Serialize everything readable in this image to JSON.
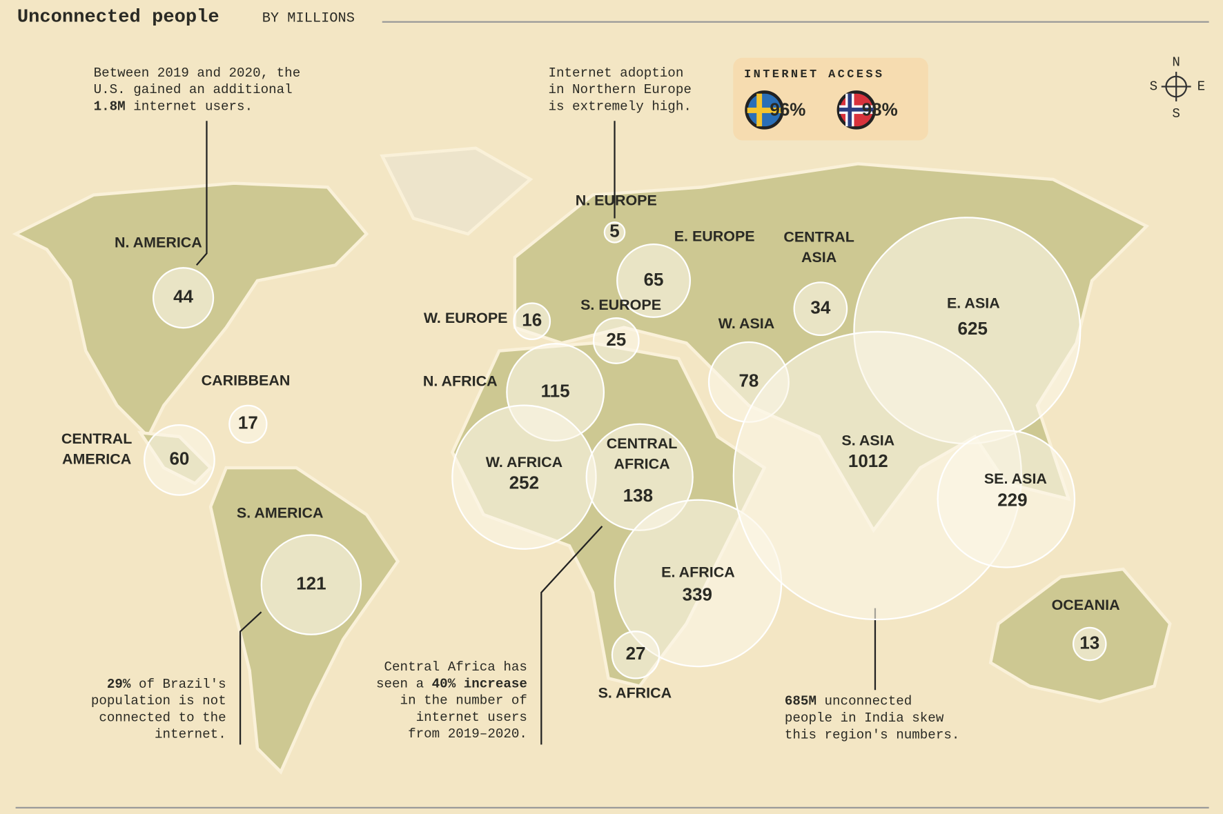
{
  "title": "Unconnected people",
  "subtitle": "BY MILLIONS",
  "regions": [
    {
      "name": [
        "N. AMERICA"
      ],
      "value": 44
    },
    {
      "name": [
        "CARIBBEAN"
      ],
      "value": 17
    },
    {
      "name": [
        "CENTRAL",
        "AMERICA"
      ],
      "value": 60
    },
    {
      "name": [
        "S. AMERICA"
      ],
      "value": 121
    },
    {
      "name": [
        "W. EUROPE"
      ],
      "value": 16
    },
    {
      "name": [
        "N. EUROPE"
      ],
      "value": 5
    },
    {
      "name": [
        "E. EUROPE"
      ],
      "value": 65
    },
    {
      "name": [
        "S. EUROPE"
      ],
      "value": 25
    },
    {
      "name": [
        "N. AFRICA"
      ],
      "value": 115
    },
    {
      "name": [
        "W. AFRICA"
      ],
      "value": 252
    },
    {
      "name": [
        "CENTRAL",
        "AFRICA"
      ],
      "value": 138
    },
    {
      "name": [
        "E. AFRICA"
      ],
      "value": 339
    },
    {
      "name": [
        "S. AFRICA"
      ],
      "value": 27
    },
    {
      "name": [
        "W. ASIA"
      ],
      "value": 78
    },
    {
      "name": [
        "CENTRAL",
        "ASIA"
      ],
      "value": 34
    },
    {
      "name": [
        "E. ASIA"
      ],
      "value": 625
    },
    {
      "name": [
        "S. ASIA"
      ],
      "value": 1012
    },
    {
      "name": [
        "SE. ASIA"
      ],
      "value": 229
    },
    {
      "name": [
        "OCEANIA"
      ],
      "value": 13
    }
  ],
  "annotations": [
    {
      "lines": [
        [
          {
            "text": "Between 2019 and 2020, the"
          }
        ],
        [
          {
            "text": "U.S. gained an additional"
          }
        ],
        [
          {
            "text": "1.8M",
            "b": true
          },
          {
            "text": " internet users."
          }
        ]
      ]
    },
    {
      "lines": [
        [
          {
            "text": "Internet adoption"
          }
        ],
        [
          {
            "text": "in Northern Europe"
          }
        ],
        [
          {
            "text": "is extremely high."
          }
        ]
      ]
    },
    {
      "lines": [
        [
          {
            "text": "29%",
            "b": true
          },
          {
            "text": " of Brazil's"
          }
        ],
        [
          {
            "text": "population is not"
          }
        ],
        [
          {
            "text": "connected to the"
          }
        ],
        [
          {
            "text": "internet."
          }
        ]
      ]
    },
    {
      "lines": [
        [
          {
            "text": "Central Africa has"
          }
        ],
        [
          {
            "text": "seen a "
          },
          {
            "text": "40% increase",
            "b": true
          }
        ],
        [
          {
            "text": "in the number of"
          }
        ],
        [
          {
            "text": "internet users"
          }
        ],
        [
          {
            "text": "from 2019–2020."
          }
        ]
      ]
    },
    {
      "lines": [
        [
          {
            "text": "685M",
            "b": true
          },
          {
            "text": " unconnected"
          }
        ],
        [
          {
            "text": "people in India skew"
          }
        ],
        [
          {
            "text": "this region's numbers."
          }
        ]
      ]
    }
  ],
  "legend": {
    "title": "INTERNET ACCESS",
    "items": [
      {
        "country": "Sweden",
        "value": 96,
        "value_label": "96%"
      },
      {
        "country": "Norway",
        "value": 98,
        "value_label": "98%"
      }
    ]
  },
  "compass": {
    "n": "N",
    "e": "E",
    "s": "S",
    "w": "S"
  }
}
